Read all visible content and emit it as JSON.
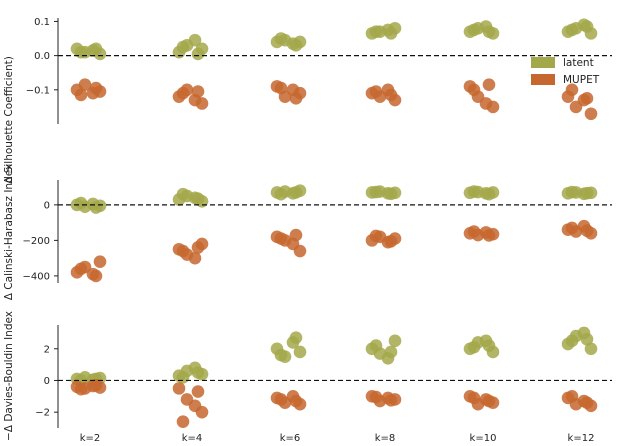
{
  "chart_data": {
    "type": "scatter",
    "categories": [
      "k=2",
      "k=4",
      "k=6",
      "k=8",
      "k=10",
      "k=12"
    ],
    "legend": {
      "position": "top-right",
      "entries": [
        "latent",
        "MUPET"
      ]
    },
    "colors": {
      "latent": "#a3a84a",
      "MUPET": "#c5672f"
    },
    "panels": [
      {
        "ylabel": "Δ Silhouette Coefficient)",
        "ylim": [
          -0.2,
          0.11
        ],
        "yticks": [
          0.1,
          0.0,
          -0.1
        ],
        "ytick_labels": [
          "0.1",
          "0.0",
          "−0.1"
        ],
        "reference_line": 0,
        "series": [
          {
            "name": "latent",
            "values": [
              [
                0.02,
                0.01,
                0.015,
                0.005,
                0.01,
                0.02
              ],
              [
                0.01,
                0.03,
                0.045,
                0.02,
                0.025,
                0.005
              ],
              [
                0.04,
                0.045,
                0.035,
                0.04,
                0.05,
                0.03
              ],
              [
                0.065,
                0.07,
                0.075,
                0.08,
                0.07,
                0.065
              ],
              [
                0.07,
                0.08,
                0.085,
                0.065,
                0.075,
                0.07
              ],
              [
                0.07,
                0.08,
                0.09,
                0.065,
                0.075,
                0.085
              ]
            ]
          },
          {
            "name": "MUPET",
            "values": [
              [
                -0.1,
                -0.085,
                -0.11,
                -0.105,
                -0.115,
                -0.095
              ],
              [
                -0.12,
                -0.1,
                -0.13,
                -0.14,
                -0.11,
                -0.105
              ],
              [
                -0.09,
                -0.12,
                -0.1,
                -0.11,
                -0.095,
                -0.125
              ],
              [
                -0.11,
                -0.12,
                -0.1,
                -0.13,
                -0.105,
                -0.115
              ],
              [
                -0.09,
                -0.12,
                -0.14,
                -0.15,
                -0.1,
                -0.085
              ],
              [
                -0.12,
                -0.15,
                -0.13,
                -0.17,
                -0.1,
                -0.125
              ]
            ]
          }
        ]
      },
      {
        "ylabel": "Δ Calinski-Harabasz Index",
        "ylim": [
          -440,
          140
        ],
        "yticks": [
          0,
          -200,
          -400
        ],
        "ytick_labels": [
          "0",
          "−200",
          "−400"
        ],
        "reference_line": 0,
        "series": [
          {
            "name": "latent",
            "values": [
              [
                0,
                -10,
                5,
                -5,
                10,
                -15
              ],
              [
                30,
                50,
                40,
                20,
                60,
                35
              ],
              [
                70,
                75,
                65,
                80,
                60,
                70
              ],
              [
                70,
                75,
                65,
                68,
                72,
                62
              ],
              [
                68,
                72,
                65,
                70,
                75,
                60
              ],
              [
                65,
                70,
                62,
                68,
                72,
                66
              ]
            ]
          },
          {
            "name": "MUPET",
            "values": [
              [
                -380,
                -350,
                -390,
                -320,
                -360,
                -400
              ],
              [
                -250,
                -280,
                -300,
                -220,
                -260,
                -240
              ],
              [
                -180,
                -200,
                -220,
                -260,
                -190,
                -170
              ],
              [
                -200,
                -180,
                -210,
                -190,
                -175,
                -205
              ],
              [
                -160,
                -170,
                -155,
                -165,
                -150,
                -172
              ],
              [
                -140,
                -150,
                -120,
                -160,
                -130,
                -145
              ]
            ]
          }
        ]
      },
      {
        "ylabel": "−Δ Davies-Bouldin Index",
        "ylim": [
          -3.0,
          3.5
        ],
        "yticks": [
          2,
          0,
          -2
        ],
        "ytick_labels": [
          "2",
          "0",
          "−2"
        ],
        "reference_line": 0,
        "series": [
          {
            "name": "latent",
            "values": [
              [
                0.1,
                0.2,
                0.05,
                0.15,
                0.0,
                0.1
              ],
              [
                0.3,
                0.6,
                0.8,
                0.4,
                0.2,
                0.5
              ],
              [
                2.0,
                1.5,
                2.4,
                1.8,
                1.6,
                2.7
              ],
              [
                2.0,
                1.7,
                1.4,
                2.5,
                2.2,
                1.8
              ],
              [
                2.0,
                2.4,
                2.5,
                1.8,
                2.1,
                2.2
              ],
              [
                2.3,
                2.8,
                3.0,
                2.0,
                2.5,
                2.6
              ]
            ]
          },
          {
            "name": "MUPET",
            "values": [
              [
                -0.4,
                -0.5,
                -0.35,
                -0.45,
                -0.55,
                -0.3
              ],
              [
                -0.5,
                -1.2,
                -1.6,
                -2.0,
                -2.6,
                -0.7
              ],
              [
                -1.1,
                -1.4,
                -1.0,
                -1.5,
                -1.2,
                -1.3
              ],
              [
                -1.0,
                -1.3,
                -1.1,
                -1.2,
                -1.05,
                -1.25
              ],
              [
                -1.0,
                -1.5,
                -1.2,
                -1.4,
                -1.1,
                -1.3
              ],
              [
                -1.1,
                -1.5,
                -1.3,
                -1.6,
                -1.0,
                -1.4
              ]
            ]
          }
        ]
      }
    ]
  }
}
